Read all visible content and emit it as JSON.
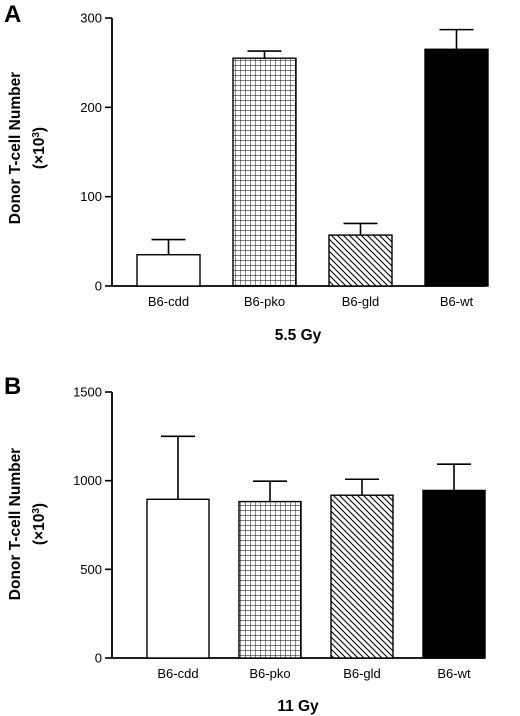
{
  "chart_data": [
    {
      "panel": "A",
      "type": "bar",
      "ylabel": "Donor T-cell Number",
      "ylabel_unit": "(×10",
      "ylabel_exp": "3",
      "ylabel_close": ")",
      "xlabel": "5.5 Gy",
      "categories": [
        "B6-cdd",
        "B6-pko",
        "B6-gld",
        "B6-wt"
      ],
      "values": [
        35,
        255,
        57,
        265
      ],
      "errors": [
        17,
        8,
        13,
        22
      ],
      "fills": [
        "white",
        "grid",
        "diagonal",
        "black"
      ],
      "ylim": [
        0,
        300
      ],
      "yticks": [
        0,
        100,
        200,
        300
      ]
    },
    {
      "panel": "B",
      "type": "bar",
      "ylabel": "Donor T-cell Number",
      "ylabel_unit": "(×10",
      "ylabel_exp": "3",
      "ylabel_close": ")",
      "xlabel": "11 Gy",
      "categories": [
        "B6-cdd",
        "B6-pko",
        "B6-gld",
        "B6-wt"
      ],
      "values": [
        895,
        882,
        918,
        945
      ],
      "errors": [
        355,
        115,
        90,
        148
      ],
      "fills": [
        "white",
        "grid",
        "diagonal",
        "black"
      ],
      "ylim": [
        0,
        1500
      ],
      "yticks": [
        0,
        500,
        1000,
        1500
      ]
    }
  ]
}
